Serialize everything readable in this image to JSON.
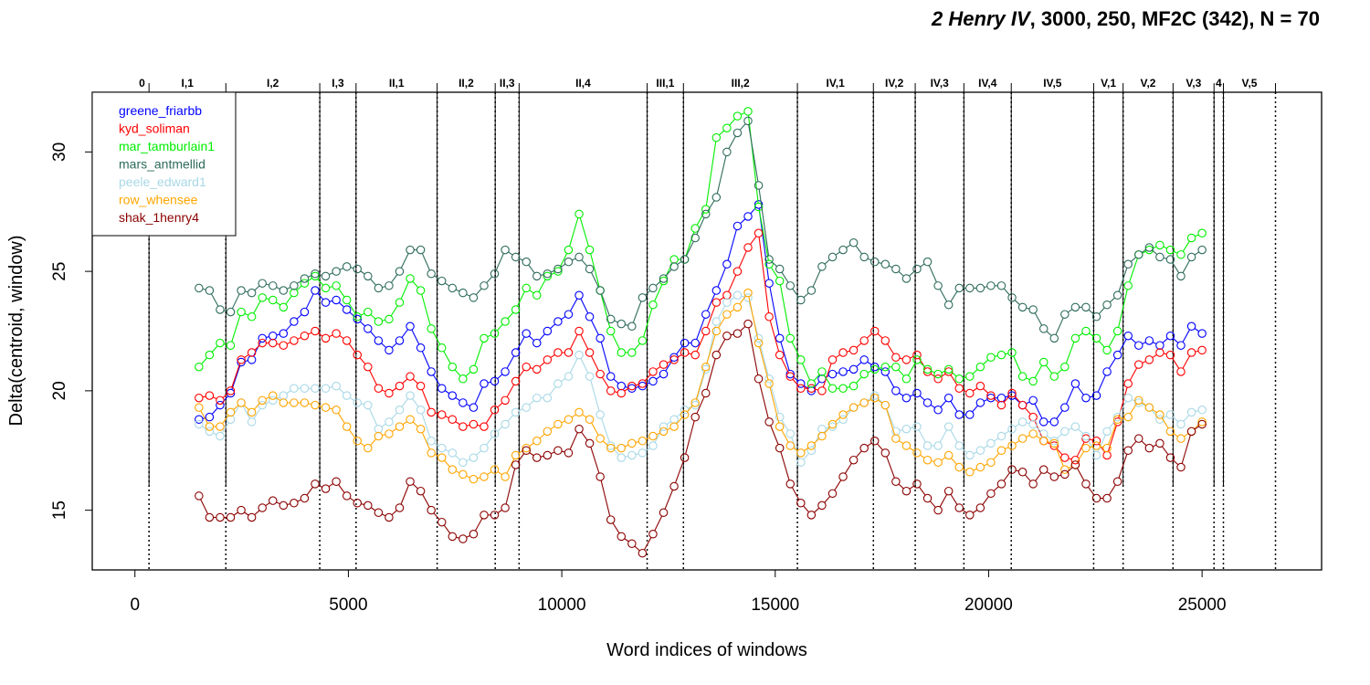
{
  "title": {
    "italic_part": "2 Henry IV",
    "rest": ", 3000, 250, MF2C (342), N = 70"
  },
  "chart_data": {
    "type": "line",
    "xlabel": "Word indices of windows",
    "ylabel": "Delta(centroid, window)",
    "xlim": [
      -1000,
      27800
    ],
    "ylim": [
      12.5,
      32.5
    ],
    "xticks": [
      0,
      5000,
      10000,
      15000,
      20000,
      25000
    ],
    "yticks": [
      15,
      20,
      25,
      30
    ],
    "legend_position": "top-left",
    "scenes": [
      {
        "label": "0",
        "start": 0,
        "end": 330
      },
      {
        "label": "I,1",
        "start": 330,
        "end": 2130
      },
      {
        "label": "I,2",
        "start": 2130,
        "end": 4330
      },
      {
        "label": "I,3",
        "start": 4330,
        "end": 5180
      },
      {
        "label": "II,1",
        "start": 5180,
        "end": 7080
      },
      {
        "label": "II,2",
        "start": 7080,
        "end": 8440
      },
      {
        "label": "II,3",
        "start": 8440,
        "end": 9000
      },
      {
        "label": "II,4",
        "start": 9000,
        "end": 12000
      },
      {
        "label": "III,1",
        "start": 12000,
        "end": 12850
      },
      {
        "label": "III,2",
        "start": 12850,
        "end": 15520
      },
      {
        "label": "IV,1",
        "start": 15520,
        "end": 17300
      },
      {
        "label": "IV,2",
        "start": 17300,
        "end": 18280
      },
      {
        "label": "IV,3",
        "start": 18280,
        "end": 19420
      },
      {
        "label": "IV,4",
        "start": 19420,
        "end": 20530
      },
      {
        "label": "IV,5",
        "start": 20530,
        "end": 22460
      },
      {
        "label": "V,1",
        "start": 22460,
        "end": 23150
      },
      {
        "label": "V,2",
        "start": 23150,
        "end": 24320
      },
      {
        "label": "V,3",
        "start": 24320,
        "end": 25280
      },
      {
        "label": "4",
        "start": 25280,
        "end": 25500
      },
      {
        "label": "V,5",
        "start": 25500,
        "end": 26720
      }
    ],
    "series": [
      {
        "name": "greene_friarbb",
        "color": "#0000ff",
        "values": [
          18.8,
          18.9,
          19.4,
          19.9,
          21.2,
          21.3,
          22.2,
          22.3,
          22.4,
          22.9,
          23.3,
          24.2,
          23.7,
          23.8,
          23.4,
          23.0,
          22.6,
          22.1,
          21.7,
          22.1,
          22.7,
          21.8,
          20.8,
          20.1,
          19.8,
          19.5,
          19.3,
          20.3,
          20.4,
          20.8,
          21.6,
          22.4,
          22.0,
          22.5,
          22.9,
          23.2,
          24.0,
          23.1,
          22.2,
          20.6,
          20.2,
          20.1,
          20.2,
          20.4,
          20.7,
          21.4,
          22.0,
          22.0,
          23.2,
          24.2,
          25.3,
          26.9,
          27.3,
          27.8,
          24.5,
          22.2,
          20.7,
          20.3,
          20.0,
          20.5,
          20.7,
          20.8,
          20.9,
          21.3,
          21.0,
          20.8,
          20.0,
          19.7,
          19.9,
          19.5,
          19.2,
          19.7,
          19.0,
          19.0,
          19.5,
          19.7,
          19.7,
          19.8,
          19.4,
          19.6,
          18.7,
          18.7,
          19.3,
          20.3,
          19.7,
          19.8,
          20.8,
          21.5,
          22.3,
          21.9,
          22.1,
          21.9,
          22.3,
          21.9,
          22.7,
          22.4
        ]
      },
      {
        "name": "kyd_soliman",
        "color": "#ff0000",
        "values": [
          19.7,
          19.8,
          19.6,
          20.0,
          21.3,
          21.6,
          22.0,
          22.0,
          21.9,
          22.1,
          22.3,
          22.5,
          22.2,
          22.4,
          22.1,
          21.5,
          21.0,
          20.1,
          19.9,
          20.2,
          20.6,
          20.2,
          19.1,
          19.0,
          18.8,
          18.5,
          18.6,
          18.5,
          19.2,
          19.6,
          20.4,
          21.0,
          20.9,
          21.3,
          21.6,
          21.6,
          22.5,
          21.6,
          20.7,
          20.0,
          19.9,
          20.2,
          20.3,
          20.8,
          21.1,
          21.3,
          21.6,
          21.5,
          22.5,
          23.7,
          24.0,
          25.0,
          26.0,
          26.6,
          23.1,
          21.5,
          20.6,
          20.1,
          20.1,
          20.0,
          21.3,
          21.6,
          21.7,
          22.1,
          22.5,
          22.1,
          21.4,
          21.3,
          21.5,
          20.8,
          20.5,
          20.8,
          20.1,
          19.9,
          20.2,
          19.8,
          19.4,
          19.9,
          19.4,
          18.9,
          17.9,
          17.7,
          17.2,
          17.1,
          18.0,
          17.9,
          17.3,
          18.7,
          20.3,
          21.1,
          21.3,
          21.6,
          21.5,
          20.8,
          21.6,
          21.7
        ]
      },
      {
        "name": "mar_tamburlain1",
        "color": "#00ee00",
        "values": [
          21.0,
          21.5,
          22.0,
          21.9,
          23.3,
          23.1,
          23.9,
          23.8,
          23.5,
          24.1,
          24.5,
          24.8,
          24.3,
          24.4,
          23.8,
          23.1,
          23.3,
          22.9,
          23.0,
          23.7,
          24.7,
          24.2,
          22.6,
          21.8,
          21.0,
          20.5,
          20.9,
          22.2,
          22.4,
          22.9,
          23.4,
          24.3,
          24.0,
          24.8,
          25.0,
          25.9,
          27.4,
          25.9,
          24.2,
          22.5,
          21.6,
          21.6,
          22.1,
          23.6,
          24.6,
          25.5,
          25.5,
          26.8,
          27.6,
          30.6,
          31.0,
          31.5,
          31.7,
          27.7,
          25.3,
          24.6,
          22.2,
          21.3,
          20.3,
          20.8,
          20.1,
          20.1,
          20.2,
          20.7,
          20.9,
          21.0,
          21.0,
          20.5,
          21.3,
          20.9,
          20.7,
          20.9,
          20.5,
          20.6,
          21.0,
          21.4,
          21.5,
          21.6,
          20.6,
          20.4,
          21.2,
          20.6,
          21.0,
          22.2,
          22.5,
          22.2,
          21.7,
          22.5,
          24.4,
          25.7,
          25.9,
          26.1,
          25.9,
          25.7,
          26.4,
          26.6
        ]
      },
      {
        "name": "mars_antmellid",
        "color": "#2e6b5b",
        "values": [
          24.3,
          24.2,
          23.4,
          23.3,
          24.2,
          24.1,
          24.5,
          24.4,
          24.2,
          24.4,
          24.7,
          24.9,
          24.8,
          25.0,
          25.2,
          25.1,
          24.8,
          24.3,
          24.4,
          25.0,
          25.9,
          25.9,
          24.9,
          24.6,
          24.3,
          24.1,
          23.9,
          24.4,
          24.9,
          25.9,
          25.6,
          25.4,
          24.8,
          24.9,
          25.1,
          25.4,
          25.6,
          25.1,
          24.2,
          23.0,
          22.8,
          22.7,
          23.9,
          24.3,
          24.7,
          25.2,
          25.5,
          26.4,
          27.4,
          28.1,
          30.0,
          30.8,
          31.3,
          28.6,
          25.5,
          25.1,
          24.4,
          23.8,
          24.2,
          25.2,
          25.6,
          25.9,
          26.2,
          25.6,
          25.4,
          25.3,
          25.1,
          24.7,
          25.1,
          25.4,
          24.4,
          23.6,
          24.3,
          24.3,
          24.3,
          24.4,
          24.4,
          23.9,
          23.5,
          23.4,
          22.6,
          22.2,
          23.2,
          23.5,
          23.5,
          23.1,
          23.6,
          24.0,
          25.3,
          25.7,
          26.0,
          25.6,
          25.5,
          24.8,
          25.6,
          25.9
        ]
      },
      {
        "name": "peele_edward1",
        "color": "#a8d8e6",
        "values": [
          18.6,
          18.3,
          18.1,
          18.8,
          19.5,
          18.7,
          19.4,
          19.6,
          19.8,
          20.1,
          20.1,
          20.1,
          20.1,
          20.2,
          19.8,
          19.5,
          19.4,
          18.4,
          18.7,
          19.2,
          19.8,
          19.2,
          17.9,
          17.6,
          17.4,
          17.0,
          17.2,
          17.6,
          18.2,
          18.6,
          19.1,
          19.3,
          19.7,
          19.7,
          20.3,
          20.6,
          21.5,
          20.6,
          19.0,
          17.7,
          17.2,
          17.3,
          17.4,
          17.7,
          18.5,
          18.8,
          19.2,
          19.4,
          20.9,
          22.9,
          23.7,
          24.0,
          23.9,
          22.2,
          20.5,
          18.9,
          18.2,
          17.0,
          17.5,
          18.4,
          18.5,
          18.8,
          19.3,
          19.5,
          19.8,
          19.4,
          18.3,
          18.4,
          18.5,
          17.7,
          17.7,
          18.5,
          17.7,
          17.3,
          17.5,
          17.8,
          18.1,
          18.4,
          18.7,
          18.6,
          18.2,
          17.9,
          18.3,
          18.5,
          18.1,
          17.3,
          18.3,
          18.9,
          19.7,
          19.5,
          19.3,
          18.8,
          19.0,
          18.6,
          19.1,
          19.2
        ]
      },
      {
        "name": "row_whensee",
        "color": "#ffa500",
        "values": [
          19.3,
          18.5,
          18.5,
          19.1,
          19.5,
          19.1,
          19.6,
          19.8,
          19.5,
          19.5,
          19.5,
          19.4,
          19.3,
          19.2,
          18.5,
          17.9,
          17.6,
          18.1,
          18.2,
          18.5,
          18.8,
          18.4,
          17.4,
          17.2,
          16.7,
          16.5,
          16.3,
          16.4,
          16.7,
          16.4,
          17.3,
          17.6,
          17.9,
          18.3,
          18.6,
          18.8,
          19.1,
          18.8,
          18.0,
          17.6,
          17.6,
          17.8,
          17.9,
          18.1,
          18.3,
          18.5,
          19.0,
          19.5,
          21.0,
          22.5,
          23.2,
          23.5,
          24.1,
          22.0,
          20.3,
          18.5,
          17.7,
          17.4,
          17.7,
          18.1,
          18.6,
          19.0,
          19.3,
          19.5,
          19.7,
          19.4,
          18.0,
          17.7,
          17.4,
          17.1,
          17.0,
          17.3,
          16.8,
          16.6,
          16.8,
          17.0,
          17.5,
          17.7,
          18.0,
          18.2,
          17.9,
          17.8,
          16.7,
          16.9,
          17.6,
          17.7,
          17.6,
          18.8,
          18.9,
          19.6,
          19.3,
          19.0,
          18.3,
          18.0,
          18.3,
          18.7
        ]
      },
      {
        "name": "shak_1henry4",
        "color": "#8b0000",
        "values": [
          15.6,
          14.7,
          14.7,
          14.7,
          15.0,
          14.7,
          15.1,
          15.4,
          15.2,
          15.3,
          15.5,
          16.1,
          15.9,
          16.2,
          15.6,
          15.3,
          15.2,
          14.9,
          14.7,
          15.1,
          16.2,
          15.8,
          15.0,
          14.5,
          13.9,
          13.8,
          14.0,
          14.8,
          14.8,
          15.1,
          16.9,
          17.5,
          17.2,
          17.3,
          17.5,
          17.4,
          18.4,
          17.8,
          16.4,
          14.6,
          13.9,
          13.6,
          13.2,
          14.0,
          14.9,
          16.0,
          17.2,
          18.9,
          19.9,
          21.5,
          22.3,
          22.4,
          22.8,
          20.5,
          18.7,
          17.6,
          16.1,
          15.3,
          14.8,
          15.2,
          15.7,
          16.4,
          17.1,
          17.6,
          17.9,
          17.4,
          16.2,
          15.8,
          16.1,
          15.5,
          15.0,
          15.8,
          15.1,
          14.8,
          15.1,
          15.7,
          16.1,
          16.7,
          16.6,
          16.1,
          16.7,
          16.4,
          16.5,
          16.9,
          16.1,
          15.5,
          15.5,
          16.2,
          17.5,
          18.0,
          17.6,
          17.8,
          17.2,
          16.8,
          18.3,
          18.6
        ]
      }
    ]
  }
}
